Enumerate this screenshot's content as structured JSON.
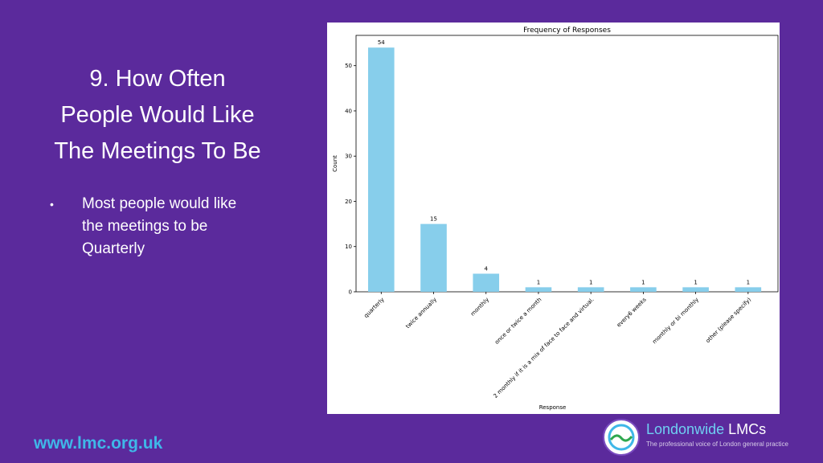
{
  "slide": {
    "title_lines": [
      "9. How Often",
      "People Would Like",
      "The Meetings To Be"
    ],
    "bullet_marker": "•",
    "bullet_lines": [
      "Most people would like",
      "the meetings to be",
      "Quarterly"
    ],
    "footer_url": "www.lmc.org.uk"
  },
  "logo": {
    "name_part1": "Londonwide",
    "name_part2": " LMCs",
    "tagline": "The professional voice of London general practice"
  },
  "colors": {
    "background": "#5b2a9c",
    "bar": "#87ceeb",
    "footer_url": "#3fb7e8"
  },
  "chart_data": {
    "type": "bar",
    "title": "Frequency of Responses",
    "xlabel": "Response",
    "ylabel": "Count",
    "categories": [
      "quarterly",
      "twice annually",
      "monthly",
      "once or twice a month",
      "2 monthly if it is a mix of face to face and virtual.",
      "every6 weeks",
      "monthly or bi monthly",
      "other (please specify)"
    ],
    "values": [
      54,
      15,
      4,
      1,
      1,
      1,
      1,
      1
    ],
    "data_labels": [
      "54",
      "15",
      "4",
      "1",
      "1",
      "1",
      "1",
      "1"
    ],
    "yticks": [
      0,
      10,
      20,
      30,
      40,
      50
    ],
    "ylim": [
      0,
      56.7
    ],
    "grid": false,
    "legend": "none"
  }
}
